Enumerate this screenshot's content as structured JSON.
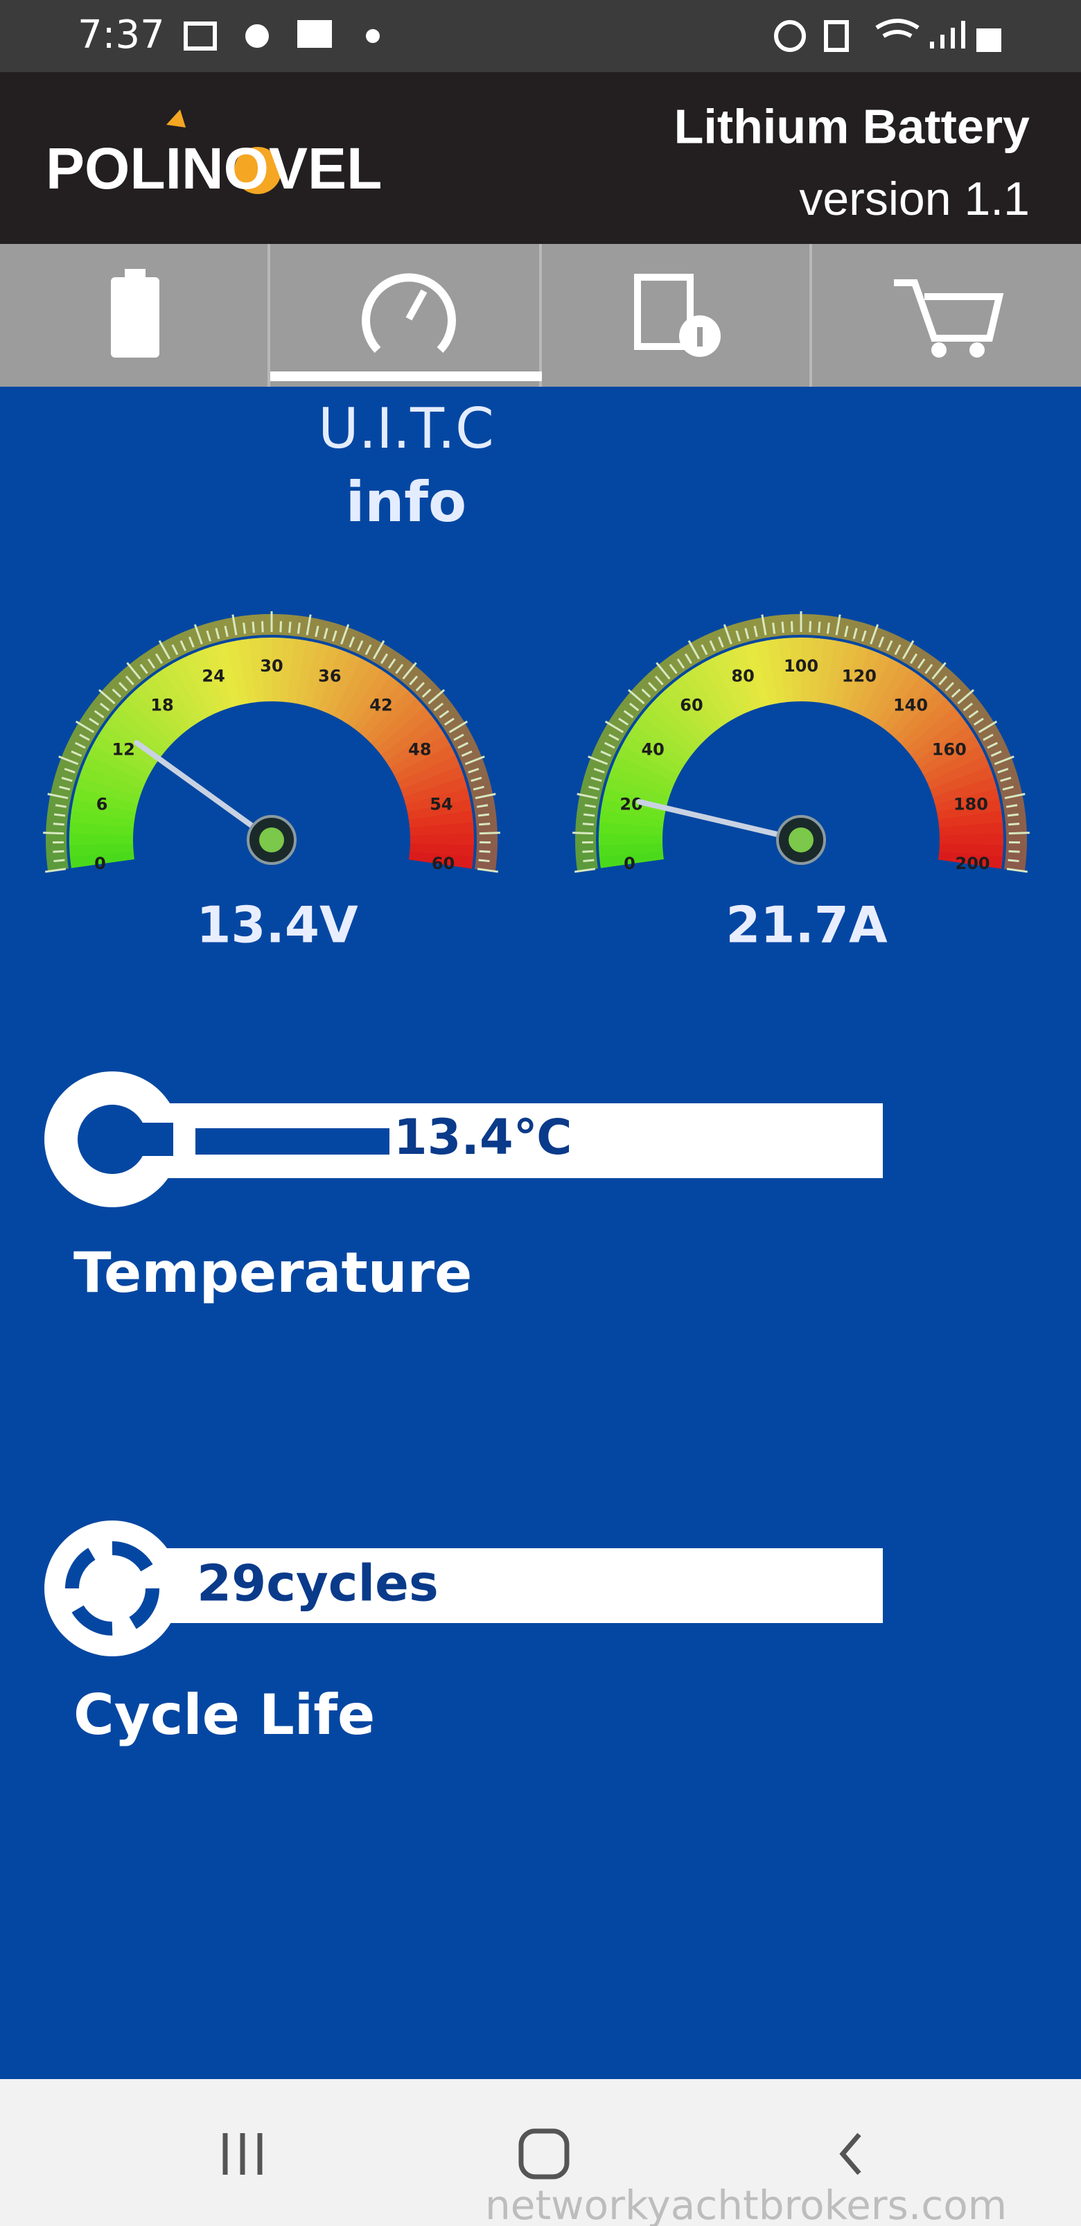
{
  "status_bar": {
    "time": "7:37"
  },
  "header": {
    "logo": "POLINOVEL",
    "title": "Lithium Battery",
    "version": "version 1.1"
  },
  "page_title": {
    "line1": "U.I.T.C",
    "line2": "info"
  },
  "gauges": [
    {
      "ticks": [
        0,
        6,
        12,
        18,
        24,
        30,
        36,
        42,
        48,
        54,
        60
      ],
      "value": 13.4,
      "value_label": "13.4V"
    },
    {
      "ticks": [
        0,
        20,
        40,
        60,
        80,
        100,
        120,
        140,
        160,
        180,
        200
      ],
      "value": 21.7,
      "value_label": "21.7A"
    }
  ],
  "temperature": {
    "value_label": "13.4℃",
    "label": "Temperature"
  },
  "cycle_life": {
    "value_label": "29cycles",
    "label": "Cycle Life"
  },
  "watermark": "networkyachtbrokers.com"
}
